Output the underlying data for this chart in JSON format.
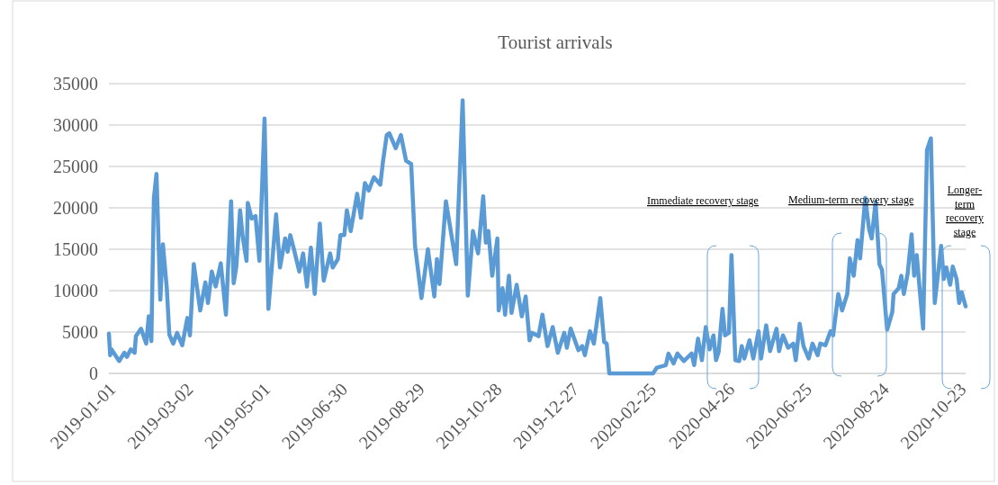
{
  "chart_data": {
    "type": "line",
    "title": "Tourist arrivals",
    "x": [
      "2019-01-01",
      "2019-01-02",
      "2019-01-03",
      "2019-01-09",
      "2019-01-13",
      "2019-01-15",
      "2019-01-18",
      "2019-01-21",
      "2019-01-22",
      "2019-01-26",
      "2019-01-30",
      "2019-02-01",
      "2019-02-03",
      "2019-02-05",
      "2019-02-07",
      "2019-02-10",
      "2019-02-12",
      "2019-02-15",
      "2019-02-17",
      "2019-02-20",
      "2019-02-23",
      "2019-02-27",
      "2019-03-03",
      "2019-03-05",
      "2019-03-08",
      "2019-03-13",
      "2019-03-17",
      "2019-03-19",
      "2019-03-22",
      "2019-03-25",
      "2019-03-29",
      "2019-04-02",
      "2019-04-06",
      "2019-04-08",
      "2019-04-10",
      "2019-04-13",
      "2019-04-15",
      "2019-04-18",
      "2019-04-19",
      "2019-04-22",
      "2019-04-25",
      "2019-04-28",
      "2019-05-02",
      "2019-05-05",
      "2019-05-11",
      "2019-05-14",
      "2019-05-18",
      "2019-05-20",
      "2019-05-22",
      "2019-05-25",
      "2019-05-29",
      "2019-06-01",
      "2019-06-04",
      "2019-06-07",
      "2019-06-10",
      "2019-06-14",
      "2019-06-17",
      "2019-06-22",
      "2019-06-24",
      "2019-06-28",
      "2019-06-30",
      "2019-07-03",
      "2019-07-05",
      "2019-07-08",
      "2019-07-13",
      "2019-07-16",
      "2019-07-19",
      "2019-07-22",
      "2019-07-26",
      "2019-07-31",
      "2019-08-02",
      "2019-08-05",
      "2019-08-07",
      "2019-08-12",
      "2019-08-16",
      "2019-08-20",
      "2019-08-24",
      "2019-08-27",
      "2019-09-01",
      "2019-09-06",
      "2019-09-11",
      "2019-09-13",
      "2019-09-15",
      "2019-09-20",
      "2019-09-28",
      "2019-10-03",
      "2019-10-07",
      "2019-10-11",
      "2019-10-15",
      "2019-10-19",
      "2019-10-21",
      "2019-10-23",
      "2019-10-26",
      "2019-10-30",
      "2019-10-31",
      "2019-11-03",
      "2019-11-05",
      "2019-11-08",
      "2019-11-10",
      "2019-11-14",
      "2019-11-18",
      "2019-11-21",
      "2019-11-24",
      "2019-11-26",
      "2019-12-01",
      "2019-12-04",
      "2019-12-08",
      "2019-12-12",
      "2019-12-16",
      "2019-12-21",
      "2019-12-23",
      "2019-12-26",
      "2020-01-01",
      "2020-01-04",
      "2020-01-06",
      "2020-01-10",
      "2020-01-13",
      "2020-01-18",
      "2020-01-21",
      "2020-01-23",
      "2020-01-25",
      "2020-02-28",
      "2020-03-02",
      "2020-03-09",
      "2020-03-11",
      "2020-03-15",
      "2020-03-18",
      "2020-03-23",
      "2020-03-29",
      "2020-03-31",
      "2020-04-03",
      "2020-04-06",
      "2020-04-09",
      "2020-04-12",
      "2020-04-15",
      "2020-04-17",
      "2020-04-19",
      "2020-04-22",
      "2020-04-24",
      "2020-04-27",
      "2020-04-29",
      "2020-05-02",
      "2020-05-05",
      "2020-05-07",
      "2020-05-09",
      "2020-05-13",
      "2020-05-16",
      "2020-05-20",
      "2020-05-22",
      "2020-05-26",
      "2020-05-29",
      "2020-06-03",
      "2020-06-05",
      "2020-06-08",
      "2020-06-12",
      "2020-06-16",
      "2020-06-18",
      "2020-06-21",
      "2020-06-24",
      "2020-06-28",
      "2020-07-01",
      "2020-07-05",
      "2020-07-07",
      "2020-07-11",
      "2020-07-15",
      "2020-07-17",
      "2020-07-21",
      "2020-07-24",
      "2020-07-28",
      "2020-07-30",
      "2020-08-02",
      "2020-08-05",
      "2020-08-07",
      "2020-08-11",
      "2020-08-14",
      "2020-08-16",
      "2020-08-19",
      "2020-08-22",
      "2020-08-24",
      "2020-08-28",
      "2020-09-01",
      "2020-09-02",
      "2020-09-06",
      "2020-09-08",
      "2020-09-10",
      "2020-09-13",
      "2020-09-16",
      "2020-09-18",
      "2020-09-20",
      "2020-09-25",
      "2020-09-28",
      "2020-10-01",
      "2020-10-04",
      "2020-10-09",
      "2020-10-11",
      "2020-10-13",
      "2020-10-16",
      "2020-10-18",
      "2020-10-21",
      "2020-10-23",
      "2020-10-25",
      "2020-10-28"
    ],
    "series": [
      {
        "color": "#5b9bd5",
        "values": [
          4800,
          2200,
          2900,
          1500,
          2500,
          2000,
          2900,
          2500,
          4500,
          5400,
          3600,
          6900,
          3900,
          21200,
          24100,
          8900,
          15600,
          10300,
          4700,
          3600,
          4900,
          3400,
          6700,
          4600,
          13200,
          7600,
          11000,
          8500,
          12300,
          10500,
          13300,
          7100,
          20800,
          10900,
          12800,
          19700,
          16500,
          13600,
          20600,
          18700,
          19000,
          13600,
          30800,
          7800,
          19200,
          12800,
          16300,
          14700,
          16700,
          14900,
          12300,
          14500,
          10500,
          15200,
          9600,
          18100,
          11200,
          14500,
          12800,
          13800,
          16700,
          16700,
          19700,
          17200,
          21700,
          18800,
          23000,
          22100,
          23700,
          22800,
          25500,
          28800,
          29000,
          27200,
          28800,
          25700,
          25300,
          15400,
          9100,
          15000,
          9300,
          13800,
          10800,
          20800,
          13200,
          33000,
          9400,
          17200,
          14500,
          21400,
          15800,
          17200,
          11800,
          16300,
          7600,
          10300,
          7100,
          11800,
          7300,
          10700,
          6900,
          9300,
          4000,
          4900,
          4500,
          7100,
          3300,
          5600,
          2500,
          4900,
          3100,
          5400,
          2800,
          3300,
          2200,
          5100,
          3600,
          9100,
          3800,
          3600,
          0,
          0,
          700,
          1000,
          2400,
          1200,
          2400,
          1500,
          2400,
          1000,
          4200,
          1600,
          5600,
          2900,
          4600,
          1600,
          2600,
          7800,
          4600,
          4900,
          14300,
          1600,
          1500,
          3300,
          1800,
          4000,
          1800,
          5100,
          1800,
          5800,
          2700,
          5400,
          2700,
          4600,
          3100,
          3600,
          1600,
          6000,
          3300,
          1800,
          3600,
          2200,
          3600,
          3400,
          5100,
          4600,
          9600,
          7600,
          9600,
          13900,
          11800,
          16100,
          13900,
          21200,
          17400,
          16300,
          20700,
          13200,
          12500,
          5300,
          7400,
          9600,
          10300,
          11800,
          9600,
          12100,
          16800,
          11800,
          14300,
          5400,
          27000,
          28400,
          8500,
          15400,
          11400,
          12800,
          10700,
          12900,
          11400,
          8500,
          9800,
          8100
        ]
      }
    ],
    "xlim": [
      "2019-01-01",
      "2020-10-28"
    ],
    "xticks": [
      "2019-01-01",
      "2019-03-02",
      "2019-05-01",
      "2019-06-30",
      "2019-08-29",
      "2019-10-28",
      "2019-12-27",
      "2020-02-25",
      "2020-04-26",
      "2020-06-25",
      "2020-08-24",
      "2020-10-23"
    ],
    "ylim": [
      0,
      35000
    ],
    "yticks": [
      0,
      5000,
      10000,
      15000,
      20000,
      25000,
      30000,
      35000
    ],
    "grid": "y",
    "marker": "none",
    "line_style": "solid",
    "annotations": [
      "Immediate recovery stage",
      "Medium-term recovery stage",
      "Longer-term recovery stage"
    ]
  }
}
